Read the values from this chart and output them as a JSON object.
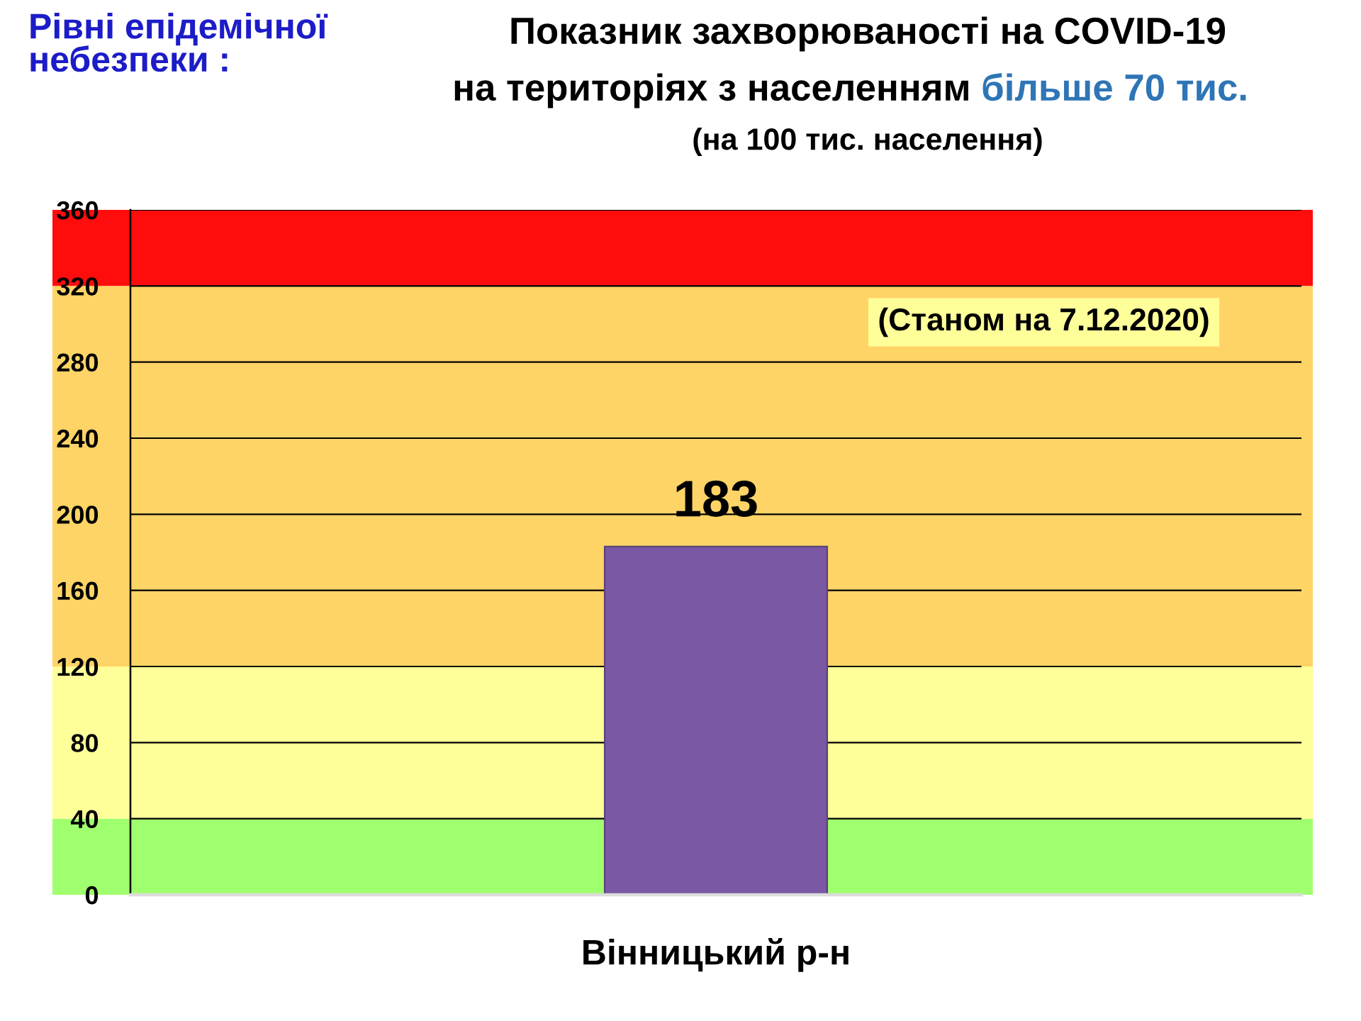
{
  "chart_data": {
    "type": "bar",
    "title": "Показник захворюваності на COVID-19",
    "subtitle": "(на 100 тис. населення)",
    "annotations": [
      "на територіях з населенням",
      "більше 70 тис.",
      "Рівні епідемічної\nнебезпеки :",
      "(Станом на 7.12.2020)"
    ],
    "categories": [
      "Вінницький р-н"
    ],
    "values": [
      183
    ],
    "color": "#7a58a4",
    "data_labels": true,
    "ylim": [
      0,
      360
    ],
    "yticks": [
      0,
      40,
      80,
      120,
      160,
      200,
      240,
      280,
      320,
      360
    ],
    "grid": "y",
    "bands": [
      {
        "axis": "y",
        "from": 0,
        "to": 40,
        "color": "#a0ff6e"
      },
      {
        "axis": "y",
        "from": 40,
        "to": 120,
        "color": "#ffff99"
      },
      {
        "axis": "y",
        "from": 120,
        "to": 320,
        "color": "#ffd466"
      },
      {
        "axis": "y",
        "from": 320,
        "to": 360,
        "color": "#ff0d0d"
      }
    ]
  }
}
